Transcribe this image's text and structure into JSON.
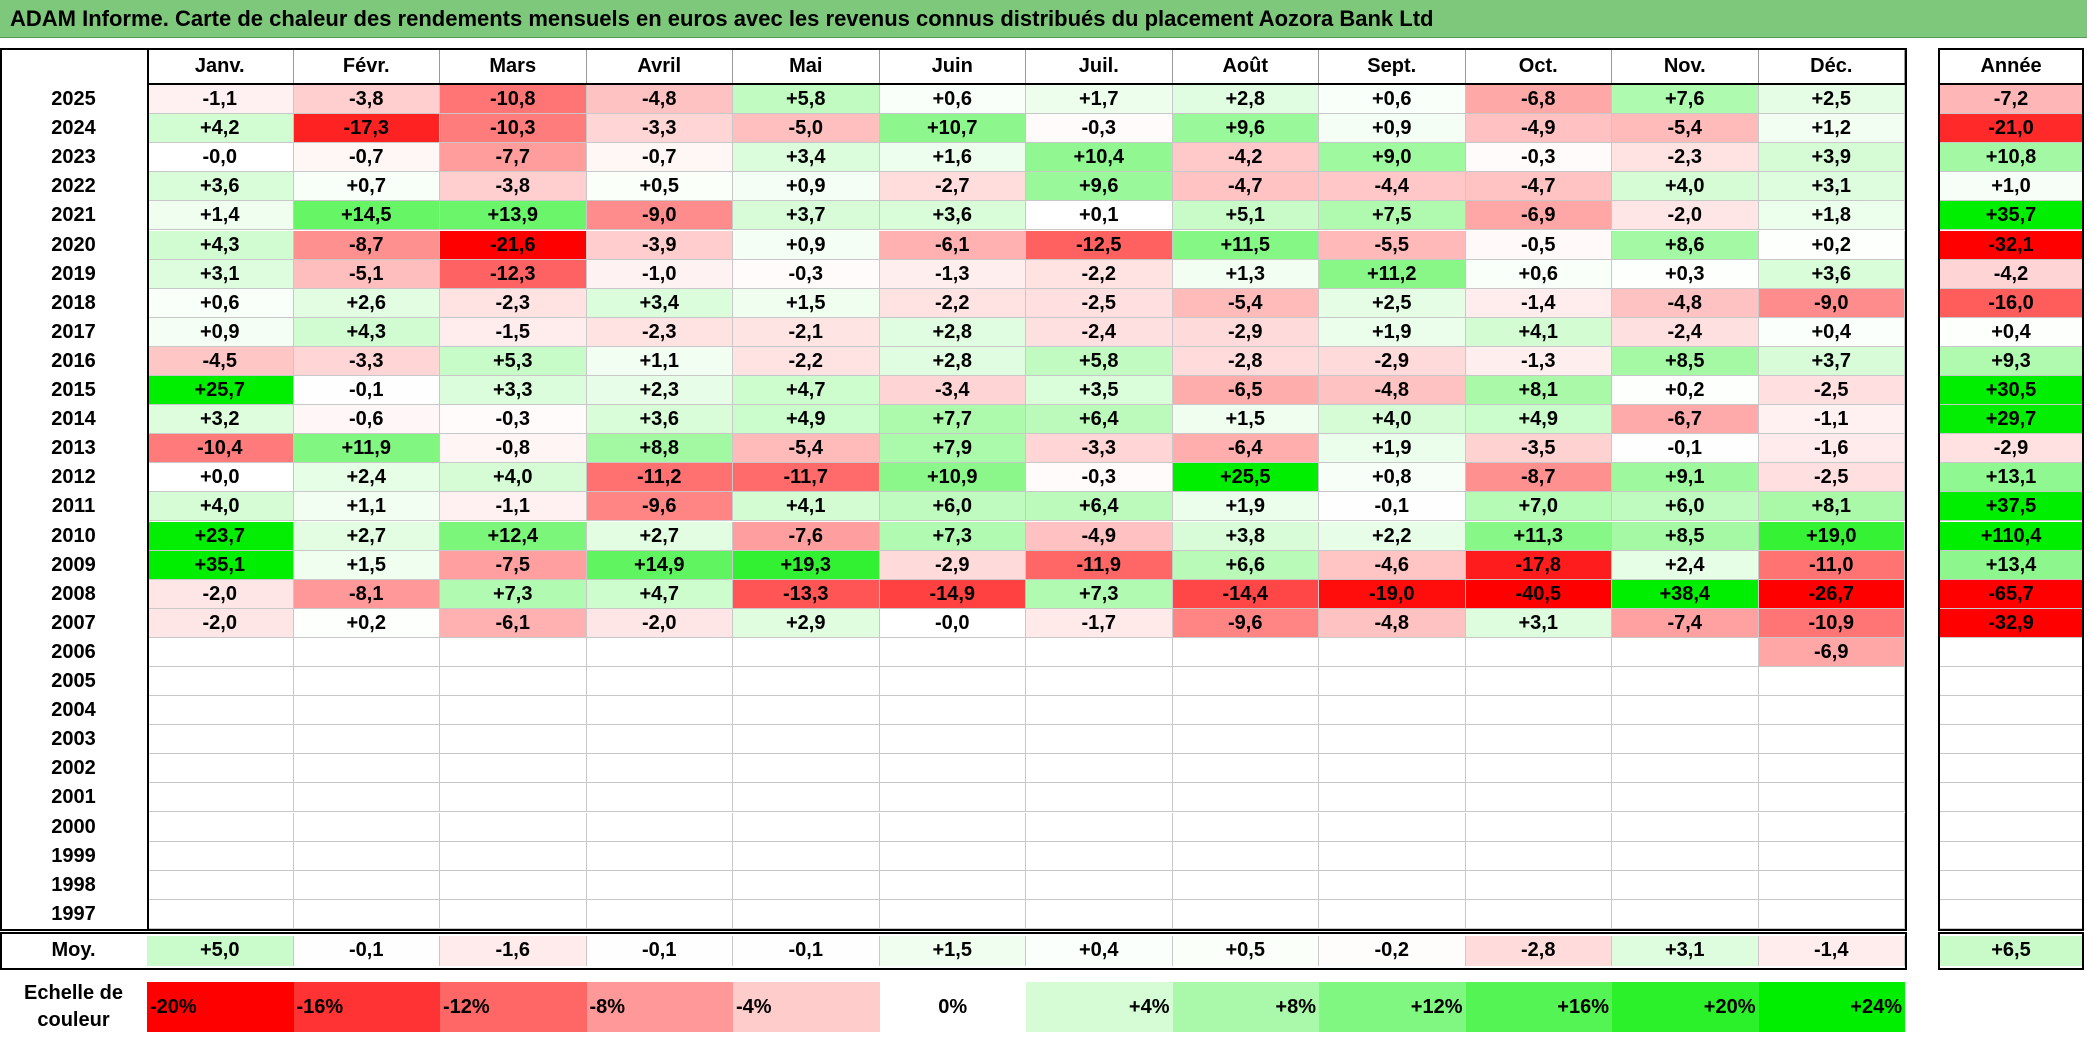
{
  "title": "ADAM Informe. Carte de chaleur des rendements mensuels en euros avec les revenus connus distribués du placement Aozora Bank Ltd",
  "chart_data": {
    "type": "heatmap",
    "months": [
      "Janv.",
      "Févr.",
      "Mars",
      "Avril",
      "Mai",
      "Juin",
      "Juil.",
      "Août",
      "Sept.",
      "Oct.",
      "Nov.",
      "Déc."
    ],
    "year_header": "Année",
    "rows": [
      {
        "year": "2025",
        "values": [
          "-1,1",
          "-3,8",
          "-10,8",
          "-4,8",
          "+5,8",
          "+0,6",
          "+1,7",
          "+2,8",
          "+0,6",
          "-6,8",
          "+7,6",
          "+2,5"
        ],
        "annual": "-7,2"
      },
      {
        "year": "2024",
        "values": [
          "+4,2",
          "-17,3",
          "-10,3",
          "-3,3",
          "-5,0",
          "+10,7",
          "-0,3",
          "+9,6",
          "+0,9",
          "-4,9",
          "-5,4",
          "+1,2"
        ],
        "annual": "-21,0"
      },
      {
        "year": "2023",
        "values": [
          "-0,0",
          "-0,7",
          "-7,7",
          "-0,7",
          "+3,4",
          "+1,6",
          "+10,4",
          "-4,2",
          "+9,0",
          "-0,3",
          "-2,3",
          "+3,9"
        ],
        "annual": "+10,8"
      },
      {
        "year": "2022",
        "values": [
          "+3,6",
          "+0,7",
          "-3,8",
          "+0,5",
          "+0,9",
          "-2,7",
          "+9,6",
          "-4,7",
          "-4,4",
          "-4,7",
          "+4,0",
          "+3,1"
        ],
        "annual": "+1,0"
      },
      {
        "year": "2021",
        "values": [
          "+1,4",
          "+14,5",
          "+13,9",
          "-9,0",
          "+3,7",
          "+3,6",
          "+0,1",
          "+5,1",
          "+7,5",
          "-6,9",
          "-2,0",
          "+1,8"
        ],
        "annual": "+35,7"
      },
      {
        "year": "2020",
        "values": [
          "+4,3",
          "-8,7",
          "-21,6",
          "-3,9",
          "+0,9",
          "-6,1",
          "-12,5",
          "+11,5",
          "-5,5",
          "-0,5",
          "+8,6",
          "+0,2"
        ],
        "annual": "-32,1"
      },
      {
        "year": "2019",
        "values": [
          "+3,1",
          "-5,1",
          "-12,3",
          "-1,0",
          "-0,3",
          "-1,3",
          "-2,2",
          "+1,3",
          "+11,2",
          "+0,6",
          "+0,3",
          "+3,6"
        ],
        "annual": "-4,2"
      },
      {
        "year": "2018",
        "values": [
          "+0,6",
          "+2,6",
          "-2,3",
          "+3,4",
          "+1,5",
          "-2,2",
          "-2,5",
          "-5,4",
          "+2,5",
          "-1,4",
          "-4,8",
          "-9,0"
        ],
        "annual": "-16,0"
      },
      {
        "year": "2017",
        "values": [
          "+0,9",
          "+4,3",
          "-1,5",
          "-2,3",
          "-2,1",
          "+2,8",
          "-2,4",
          "-2,9",
          "+1,9",
          "+4,1",
          "-2,4",
          "+0,4"
        ],
        "annual": "+0,4"
      },
      {
        "year": "2016",
        "values": [
          "-4,5",
          "-3,3",
          "+5,3",
          "+1,1",
          "-2,2",
          "+2,8",
          "+5,8",
          "-2,8",
          "-2,9",
          "-1,3",
          "+8,5",
          "+3,7"
        ],
        "annual": "+9,3"
      },
      {
        "year": "2015",
        "values": [
          "+25,7",
          "-0,1",
          "+3,3",
          "+2,3",
          "+4,7",
          "-3,4",
          "+3,5",
          "-6,5",
          "-4,8",
          "+8,1",
          "+0,2",
          "-2,5"
        ],
        "annual": "+30,5"
      },
      {
        "year": "2014",
        "values": [
          "+3,2",
          "-0,6",
          "-0,3",
          "+3,6",
          "+4,9",
          "+7,7",
          "+6,4",
          "+1,5",
          "+4,0",
          "+4,9",
          "-6,7",
          "-1,1"
        ],
        "annual": "+29,7"
      },
      {
        "year": "2013",
        "values": [
          "-10,4",
          "+11,9",
          "-0,8",
          "+8,8",
          "-5,4",
          "+7,9",
          "-3,3",
          "-6,4",
          "+1,9",
          "-3,5",
          "-0,1",
          "-1,6"
        ],
        "annual": "-2,9"
      },
      {
        "year": "2012",
        "values": [
          "+0,0",
          "+2,4",
          "+4,0",
          "-11,2",
          "-11,7",
          "+10,9",
          "-0,3",
          "+25,5",
          "+0,8",
          "-8,7",
          "+9,1",
          "-2,5"
        ],
        "annual": "+13,1"
      },
      {
        "year": "2011",
        "values": [
          "+4,0",
          "+1,1",
          "-1,1",
          "-9,6",
          "+4,1",
          "+6,0",
          "+6,4",
          "+1,9",
          "-0,1",
          "+7,0",
          "+6,0",
          "+8,1"
        ],
        "annual": "+37,5"
      },
      {
        "year": "2010",
        "values": [
          "+23,7",
          "+2,7",
          "+12,4",
          "+2,7",
          "-7,6",
          "+7,3",
          "-4,9",
          "+3,8",
          "+2,2",
          "+11,3",
          "+8,5",
          "+19,0"
        ],
        "annual": "+110,4"
      },
      {
        "year": "2009",
        "values": [
          "+35,1",
          "+1,5",
          "-7,5",
          "+14,9",
          "+19,3",
          "-2,9",
          "-11,9",
          "+6,6",
          "-4,6",
          "-17,8",
          "+2,4",
          "-11,0"
        ],
        "annual": "+13,4"
      },
      {
        "year": "2008",
        "values": [
          "-2,0",
          "-8,1",
          "+7,3",
          "+4,7",
          "-13,3",
          "-14,9",
          "+7,3",
          "-14,4",
          "-19,0",
          "-40,5",
          "+38,4",
          "-26,7"
        ],
        "annual": "-65,7"
      },
      {
        "year": "2007",
        "values": [
          "-2,0",
          "+0,2",
          "-6,1",
          "-2,0",
          "+2,9",
          "-0,0",
          "-1,7",
          "-9,6",
          "-4,8",
          "+3,1",
          "-7,4",
          "-10,9"
        ],
        "annual": "-32,9"
      },
      {
        "year": "2006",
        "values": [
          "",
          "",
          "",
          "",
          "",
          "",
          "",
          "",
          "",
          "",
          "",
          "-6,9"
        ],
        "annual": ""
      },
      {
        "year": "2005",
        "values": [
          "",
          "",
          "",
          "",
          "",
          "",
          "",
          "",
          "",
          "",
          "",
          ""
        ],
        "annual": ""
      },
      {
        "year": "2004",
        "values": [
          "",
          "",
          "",
          "",
          "",
          "",
          "",
          "",
          "",
          "",
          "",
          ""
        ],
        "annual": ""
      },
      {
        "year": "2003",
        "values": [
          "",
          "",
          "",
          "",
          "",
          "",
          "",
          "",
          "",
          "",
          "",
          ""
        ],
        "annual": ""
      },
      {
        "year": "2002",
        "values": [
          "",
          "",
          "",
          "",
          "",
          "",
          "",
          "",
          "",
          "",
          "",
          ""
        ],
        "annual": ""
      },
      {
        "year": "2001",
        "values": [
          "",
          "",
          "",
          "",
          "",
          "",
          "",
          "",
          "",
          "",
          "",
          ""
        ],
        "annual": ""
      },
      {
        "year": "2000",
        "values": [
          "",
          "",
          "",
          "",
          "",
          "",
          "",
          "",
          "",
          "",
          "",
          ""
        ],
        "annual": ""
      },
      {
        "year": "1999",
        "values": [
          "",
          "",
          "",
          "",
          "",
          "",
          "",
          "",
          "",
          "",
          "",
          ""
        ],
        "annual": ""
      },
      {
        "year": "1998",
        "values": [
          "",
          "",
          "",
          "",
          "",
          "",
          "",
          "",
          "",
          "",
          "",
          ""
        ],
        "annual": ""
      },
      {
        "year": "1997",
        "values": [
          "",
          "",
          "",
          "",
          "",
          "",
          "",
          "",
          "",
          "",
          "",
          ""
        ],
        "annual": ""
      }
    ],
    "average": {
      "label": "Moy.",
      "values": [
        "+5,0",
        "-0,1",
        "-1,6",
        "-0,1",
        "-0,1",
        "+1,5",
        "+0,4",
        "+0,5",
        "-0,2",
        "-2,8",
        "+3,1",
        "-1,4"
      ],
      "annual": "+6,5"
    },
    "color_scale": {
      "label": "Echelle de couleur",
      "stops": [
        "-20%",
        "-16%",
        "-12%",
        "-8%",
        "-4%",
        "0%",
        "+4%",
        "+8%",
        "+12%",
        "+16%",
        "+20%",
        "+24%"
      ],
      "negative_color": "#ff0000",
      "neutral_color": "#ffffff",
      "positive_color": "#00ee00"
    }
  }
}
